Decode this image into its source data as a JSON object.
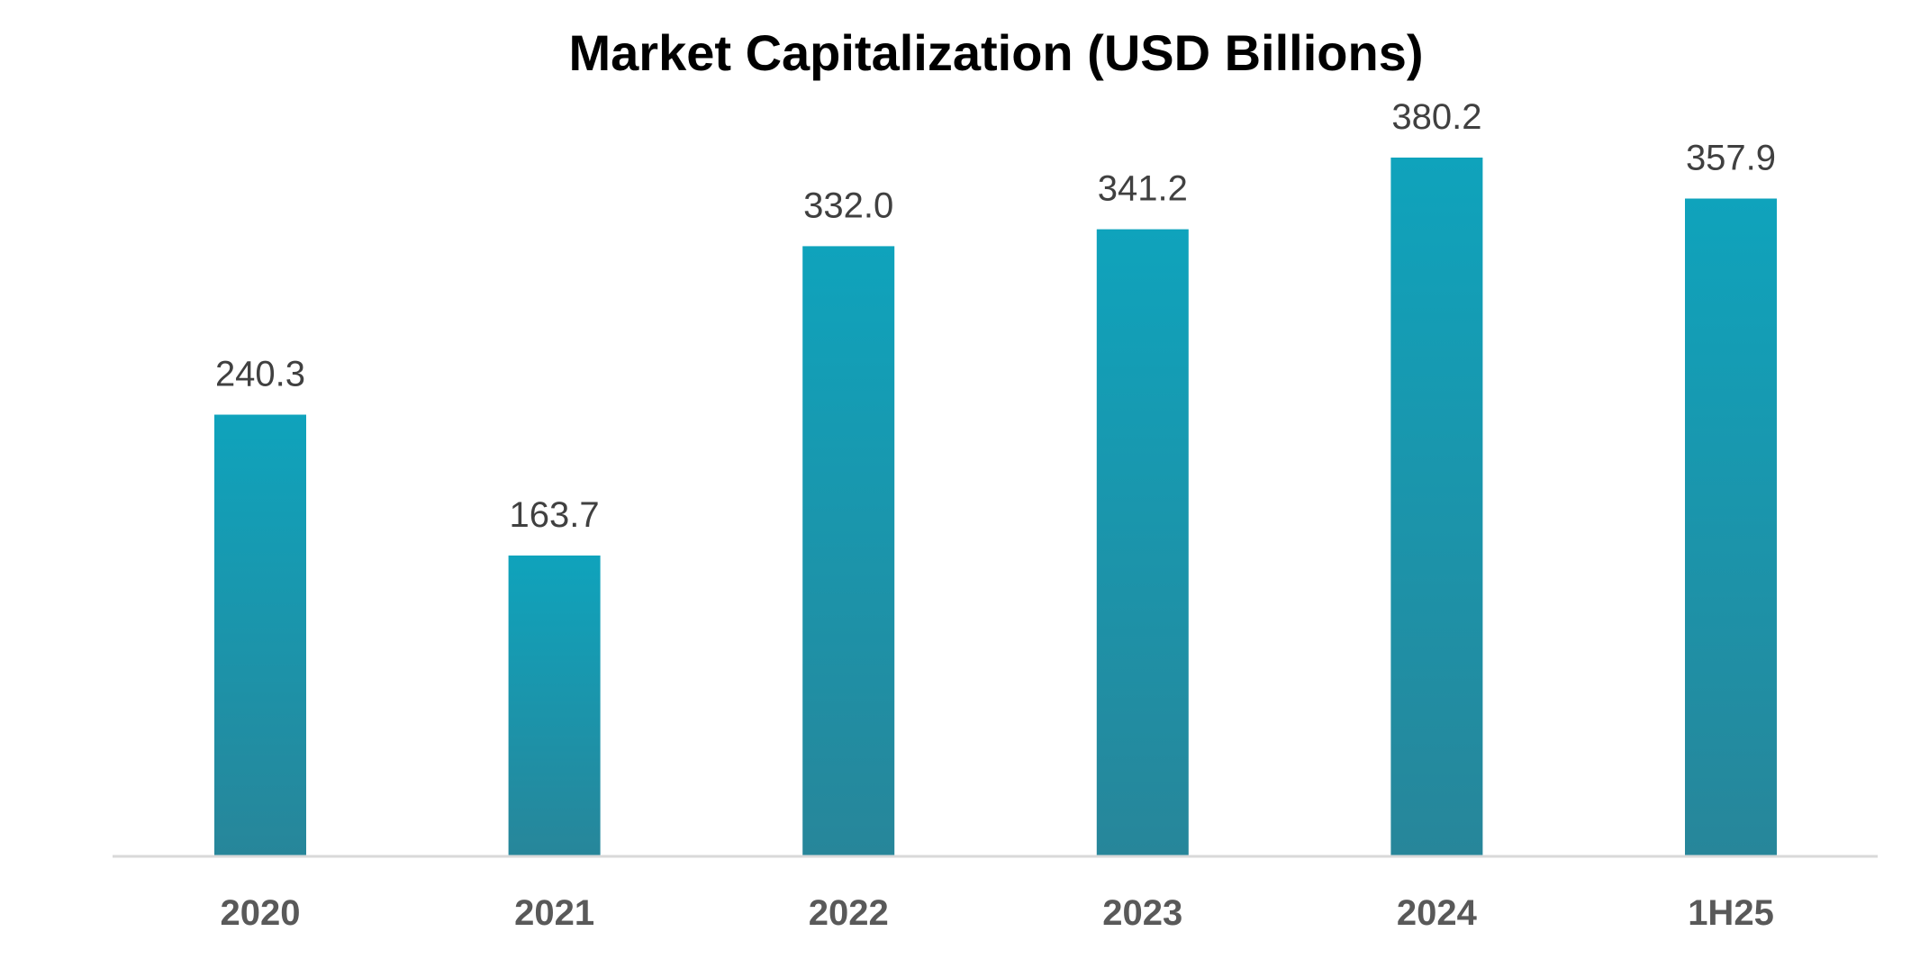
{
  "chart_data": {
    "type": "bar",
    "title": "Market Capitalization (USD Billions)",
    "xlabel": "",
    "ylabel": "",
    "categories": [
      "2020",
      "2021",
      "2022",
      "2023",
      "2024",
      "1H25"
    ],
    "values": [
      240.3,
      163.7,
      332.0,
      341.2,
      380.2,
      357.9
    ],
    "value_labels": [
      "240.3",
      "163.7",
      "332.0",
      "341.2",
      "380.2",
      "357.9"
    ],
    "ylim": [
      0,
      380.2
    ],
    "grid": false,
    "legend": "none",
    "bar_color_top": "#0FA3BC",
    "bar_color_bottom": "#27869A",
    "axis_color": "#D9D9D9"
  }
}
